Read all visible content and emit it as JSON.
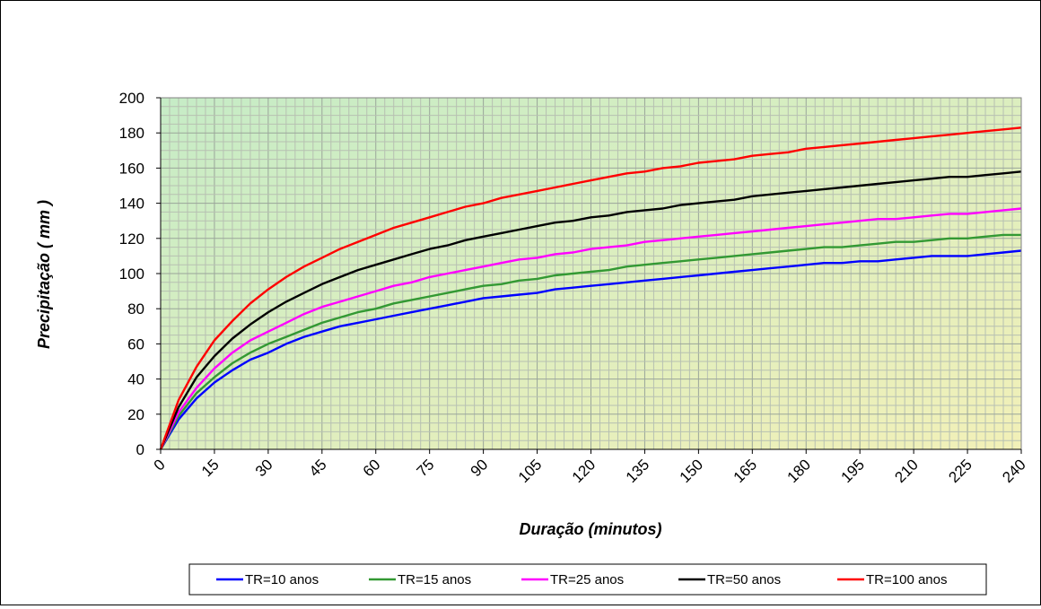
{
  "chart_data": {
    "type": "line",
    "title": "",
    "xlabel": "Duração (minutos)",
    "ylabel": "Precipitação  ( mm )",
    "xlim": [
      0,
      240
    ],
    "ylim": [
      0,
      200
    ],
    "x_ticks": [
      "0",
      "15",
      "30",
      "45",
      "60",
      "75",
      "90",
      "105",
      "120",
      "135",
      "150",
      "165",
      "180",
      "195",
      "210",
      "225",
      "240"
    ],
    "y_ticks": [
      "0",
      "20",
      "40",
      "60",
      "80",
      "100",
      "120",
      "140",
      "160",
      "180",
      "200"
    ],
    "grid": true,
    "legend_position": "bottom",
    "plot_background": "gradient green-to-yellow",
    "x": [
      0,
      5,
      10,
      15,
      20,
      25,
      30,
      35,
      40,
      45,
      50,
      55,
      60,
      65,
      70,
      75,
      80,
      85,
      90,
      95,
      100,
      105,
      110,
      115,
      120,
      125,
      130,
      135,
      140,
      145,
      150,
      155,
      160,
      165,
      170,
      175,
      180,
      185,
      190,
      195,
      200,
      205,
      210,
      215,
      220,
      225,
      230,
      235,
      240
    ],
    "series": [
      {
        "name": "TR=10 anos",
        "color": "#0000ff",
        "values": [
          0,
          17,
          29,
          38,
          45,
          51,
          55,
          60,
          64,
          67,
          70,
          72,
          74,
          76,
          78,
          80,
          82,
          84,
          86,
          87,
          88,
          89,
          91,
          92,
          93,
          94,
          95,
          96,
          97,
          98,
          99,
          100,
          101,
          102,
          103,
          104,
          105,
          106,
          106,
          107,
          107,
          108,
          109,
          110,
          110,
          110,
          111,
          112,
          113
        ]
      },
      {
        "name": "TR=15 anos",
        "color": "#339933",
        "values": [
          0,
          19,
          32,
          41,
          49,
          55,
          60,
          64,
          68,
          72,
          75,
          78,
          80,
          83,
          85,
          87,
          89,
          91,
          93,
          94,
          96,
          97,
          99,
          100,
          101,
          102,
          104,
          105,
          106,
          107,
          108,
          109,
          110,
          111,
          112,
          113,
          114,
          115,
          115,
          116,
          117,
          118,
          118,
          119,
          120,
          120,
          121,
          122,
          122
        ]
      },
      {
        "name": "TR=25 anos",
        "color": "#ff00ff",
        "values": [
          0,
          21,
          35,
          46,
          55,
          62,
          67,
          72,
          77,
          81,
          84,
          87,
          90,
          93,
          95,
          98,
          100,
          102,
          104,
          106,
          108,
          109,
          111,
          112,
          114,
          115,
          116,
          118,
          119,
          120,
          121,
          122,
          123,
          124,
          125,
          126,
          127,
          128,
          129,
          130,
          131,
          131,
          132,
          133,
          134,
          134,
          135,
          136,
          137
        ]
      },
      {
        "name": "TR=50 anos",
        "color": "#000000",
        "values": [
          0,
          24,
          41,
          53,
          63,
          71,
          78,
          84,
          89,
          94,
          98,
          102,
          105,
          108,
          111,
          114,
          116,
          119,
          121,
          123,
          125,
          127,
          129,
          130,
          132,
          133,
          135,
          136,
          137,
          139,
          140,
          141,
          142,
          144,
          145,
          146,
          147,
          148,
          149,
          150,
          151,
          152,
          153,
          154,
          155,
          155,
          156,
          157,
          158
        ]
      },
      {
        "name": "TR=100 anos",
        "color": "#ff0000",
        "values": [
          0,
          28,
          47,
          62,
          73,
          83,
          91,
          98,
          104,
          109,
          114,
          118,
          122,
          126,
          129,
          132,
          135,
          138,
          140,
          143,
          145,
          147,
          149,
          151,
          153,
          155,
          157,
          158,
          160,
          161,
          163,
          164,
          165,
          167,
          168,
          169,
          171,
          172,
          173,
          174,
          175,
          176,
          177,
          178,
          179,
          180,
          181,
          182,
          183
        ]
      }
    ]
  }
}
